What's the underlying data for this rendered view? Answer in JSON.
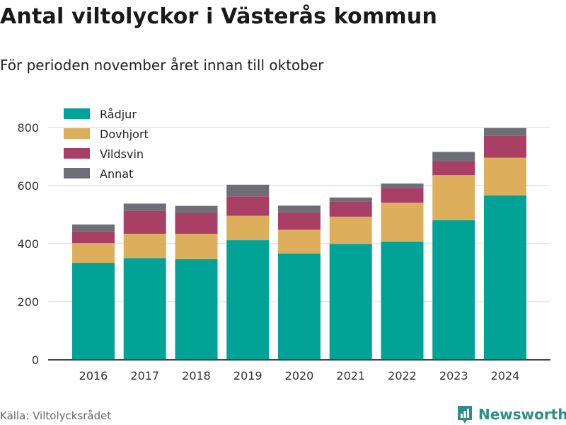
{
  "header": {
    "title": "Antal viltolyckor i Västerås kommun",
    "subtitle": "För perioden november året innan till oktober"
  },
  "footer": {
    "source": "Källa: Viltolycksrådet",
    "brand": "Newsworthy"
  },
  "icons": {
    "brand_logo": "newsworthy-logo-icon"
  },
  "chart_data": {
    "type": "bar",
    "stacked": true,
    "title": "Antal viltolyckor i Västerås kommun",
    "subtitle": "För perioden november året innan till oktober",
    "categories": [
      "2016",
      "2017",
      "2018",
      "2019",
      "2020",
      "2021",
      "2022",
      "2023",
      "2024"
    ],
    "series": [
      {
        "name": "Rådjur",
        "color": "#00a396",
        "values": [
          334,
          350,
          347,
          412,
          366,
          399,
          407,
          481,
          566
        ]
      },
      {
        "name": "Dovhjort",
        "color": "#ddaf5c",
        "values": [
          68,
          84,
          87,
          84,
          82,
          94,
          134,
          155,
          130
        ]
      },
      {
        "name": "Vildsvin",
        "color": "#a93f67",
        "values": [
          40,
          79,
          72,
          67,
          60,
          53,
          51,
          48,
          75
        ]
      },
      {
        "name": "Annat",
        "color": "#6e6f76",
        "values": [
          24,
          25,
          24,
          40,
          23,
          13,
          15,
          32,
          27
        ]
      }
    ],
    "yticks": [
      0,
      200,
      400,
      600,
      800
    ],
    "ylim": [
      0,
      820
    ],
    "grid": true,
    "legend_position": "top-left"
  }
}
